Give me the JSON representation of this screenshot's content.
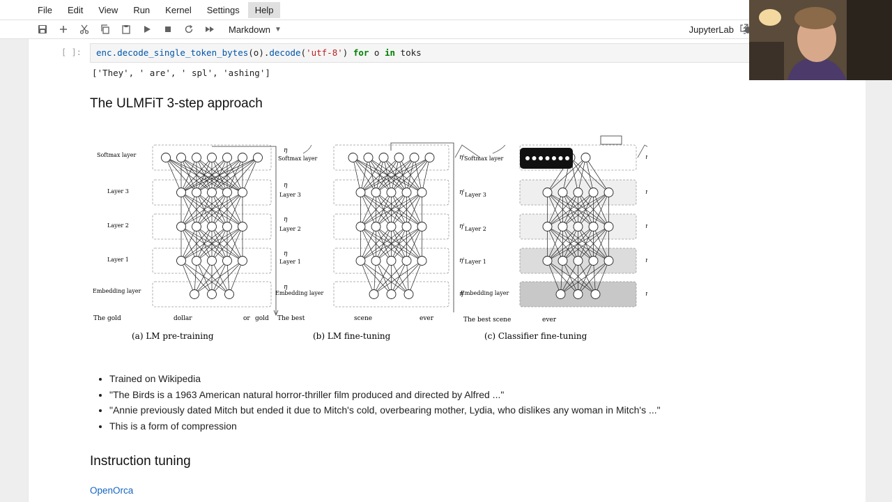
{
  "menu": [
    "File",
    "Edit",
    "View",
    "Run",
    "Kernel",
    "Settings",
    "Help"
  ],
  "active_menu": "Help",
  "toolbar": {
    "cell_type": "Markdown",
    "icons": [
      "save-icon",
      "add-icon",
      "cut-icon",
      "copy-icon",
      "paste-icon",
      "run-icon",
      "stop-icon",
      "restart-icon",
      "fast-forward-icon"
    ],
    "jupyterlab_label": "JupyterLab"
  },
  "code_cell": {
    "prompt": "[ ]:",
    "code_parts": {
      "p1": "enc.",
      "p2": "decode_single_token_bytes",
      "p3": "(o).",
      "p4": "decode",
      "p5": "(",
      "p6": "'utf-8'",
      "p7": ") ",
      "p8": "for",
      "p9": " o ",
      "p10": "in",
      "p11": " toks"
    },
    "output": "['They', ' are', ' spl', 'ashing']"
  },
  "heading1": "The ULMFiT 3-step approach",
  "figure": {
    "layer_labels": [
      "Softmax layer",
      "Layer 3",
      "Layer 2",
      "Layer 1",
      "Embedding layer"
    ],
    "panel_a": {
      "caption": "(a) LM pre-training",
      "words": [
        "The gold",
        "dollar",
        "or",
        "gold"
      ]
    },
    "panel_b": {
      "caption": "(b) LM fine-tuning",
      "words": [
        "The best",
        "scene",
        "ever"
      ]
    },
    "panel_c": {
      "caption": "(c) Classifier fine-tuning",
      "words": [
        "The best scene",
        "ever"
      ]
    },
    "eta": "η",
    "eta_l": "ηˡ"
  },
  "bullets": [
    "Trained on Wikipedia",
    "\"The Birds is a 1963 American natural horror-thriller film produced and directed by Alfred ...\"",
    "\"Annie previously dated Mitch but ended it due to Mitch's cold, overbearing mother, Lydia, who dislikes any woman in Mitch's ...\"",
    "This is a form of compression"
  ],
  "heading2": "Instruction tuning",
  "link": "OpenOrca",
  "colors": {
    "link": "#1565c0",
    "code_bg": "#f5f5f5",
    "keyword": "#008000",
    "string": "#ba2121"
  }
}
